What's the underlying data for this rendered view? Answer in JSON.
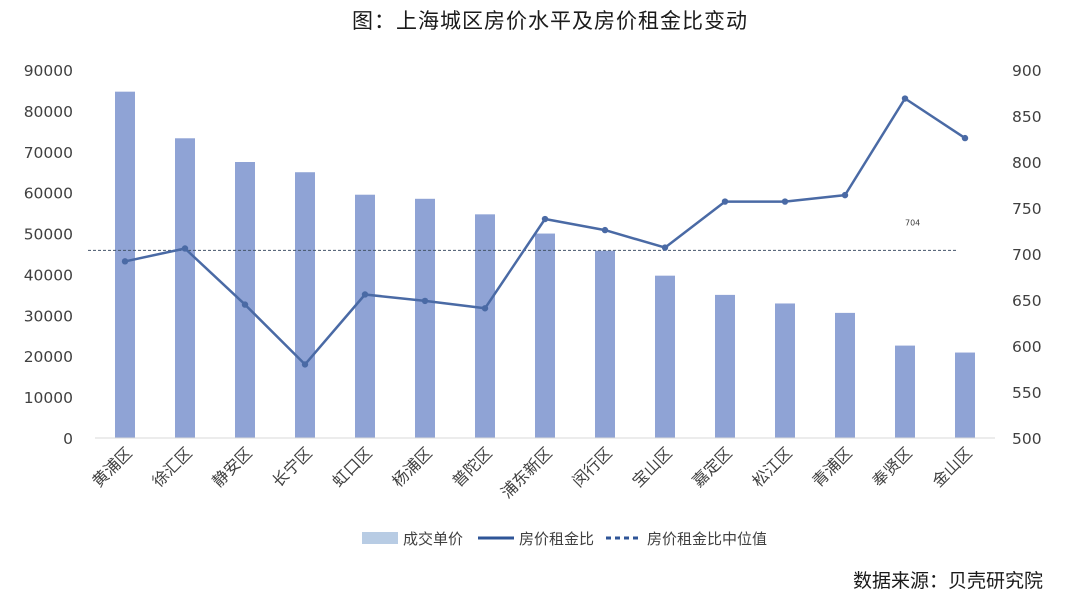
{
  "chart_data": {
    "type": "bar+line",
    "title": "图：上海城区房价水平及房价租金比变动",
    "categories": [
      "黄浦区",
      "徐汇区",
      "静安区",
      "长宁区",
      "虹口区",
      "杨浦区",
      "普陀区",
      "浦东新区",
      "闵行区",
      "宝山区",
      "嘉定区",
      "松江区",
      "青浦区",
      "奉贤区",
      "金山区"
    ],
    "series": [
      {
        "name": "成交单价",
        "type": "bar",
        "axis": "left",
        "color": "#8fa3d5",
        "legend_color": "#b8cce4",
        "values": [
          84700,
          73300,
          67500,
          65000,
          59500,
          58500,
          54700,
          50000,
          45800,
          39700,
          35000,
          32900,
          30600,
          22600,
          20900
        ]
      },
      {
        "name": "房价租金比",
        "type": "line",
        "axis": "right",
        "color": "#4a6aa5",
        "legend_color": "#2f5597",
        "values": [
          692,
          706,
          645,
          580,
          656,
          649,
          641,
          738,
          726,
          707,
          757,
          757,
          764,
          869,
          826
        ]
      },
      {
        "name": "房价租金比中位值",
        "type": "reference-line",
        "axis": "right",
        "color": "#44546a",
        "value": 704
      }
    ],
    "y_left": {
      "min": 0,
      "max": 90000,
      "ticks": [
        0,
        10000,
        20000,
        30000,
        40000,
        50000,
        60000,
        70000,
        80000,
        90000
      ]
    },
    "y_right": {
      "min": 500,
      "max": 900,
      "ticks": [
        500,
        550,
        600,
        650,
        700,
        750,
        800,
        850,
        900
      ]
    },
    "median_label": "704",
    "legend_position": "bottom",
    "grid": false
  },
  "source_text": "数据来源：贝壳研究院"
}
